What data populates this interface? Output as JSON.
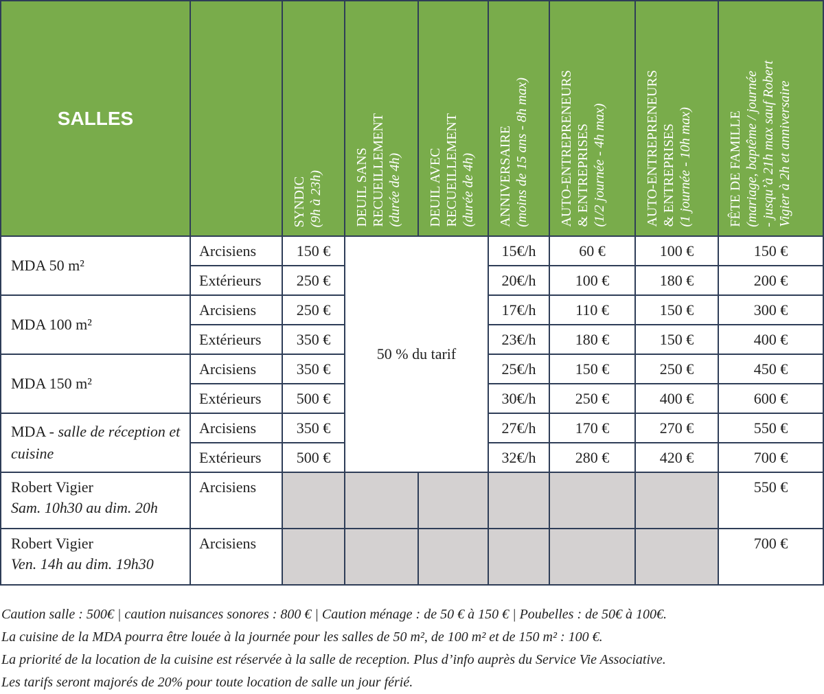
{
  "table": {
    "header": {
      "salles": "SALLES",
      "columns": [
        {
          "title": [
            "SYNDIC"
          ],
          "note": [
            "(9h à 23h)"
          ]
        },
        {
          "title": [
            "DEUIL SANS",
            "RECUEILLEMENT"
          ],
          "note": [
            "(durée de 4h)"
          ]
        },
        {
          "title": [
            "DEUIL AVEC",
            "RECUEILLEMENT"
          ],
          "note": [
            "(durée de 4h)"
          ]
        },
        {
          "title": [
            "ANNIVERSAIRE"
          ],
          "note": [
            "(moins de 15 ans - 8h max)"
          ]
        },
        {
          "title": [
            "AUTO-ENTREPRENEURS",
            "& ENTREPRISES"
          ],
          "note": [
            "(1/2 journée - 4h max)"
          ]
        },
        {
          "title": [
            "AUTO-ENTREPRENEURS",
            "& ENTREPRISES"
          ],
          "note": [
            "(1 journée - 10h max)"
          ]
        },
        {
          "title": [
            "FÊTE DE FAMILLE"
          ],
          "note": [
            "(mariage, baptême / journée",
            "- jusqu’à 21h max sauf Robert",
            "Vigier à 2h et anniversaire"
          ]
        }
      ]
    },
    "deuil": "50 % du tarif",
    "groups": [
      {
        "salle": "MDA 50 m²",
        "rows": [
          [
            "Arcisiens",
            "150 €",
            "15€/h",
            "60 €",
            "100 €",
            "150 €"
          ],
          [
            "Extérieurs",
            "250 €",
            "20€/h",
            "100 €",
            "180 €",
            "200 €"
          ]
        ]
      },
      {
        "salle": "MDA 100 m²",
        "rows": [
          [
            "Arcisiens",
            "250 €",
            "17€/h",
            "110 €",
            "150 €",
            "300 €"
          ],
          [
            "Extérieurs",
            "350 €",
            "23€/h",
            "180 €",
            "150 €",
            "400 €"
          ]
        ]
      },
      {
        "salle": "MDA 150 m²",
        "rows": [
          [
            "Arcisiens",
            "350 €",
            "25€/h",
            "150 €",
            "250 €",
            "450 €"
          ],
          [
            "Extérieurs",
            "500 €",
            "30€/h",
            "250 €",
            "400 €",
            "600 €"
          ]
        ]
      },
      {
        "salle": "MDA - ",
        "salle_italic": "salle de réception et cuisine",
        "rows": [
          [
            "Arcisiens",
            "350 €",
            "27€/h",
            "170 €",
            "270 €",
            "550 €"
          ],
          [
            "Extérieurs",
            "500 €",
            "32€/h",
            "280 €",
            "420 €",
            "700 €"
          ]
        ]
      },
      {
        "salle": "Robert Vigier",
        "salle_italic": "Sam. 10h30 au dim. 20h",
        "rows": [
          [
            "Arcisiens",
            "550 €"
          ]
        ]
      },
      {
        "salle": "Robert Vigier",
        "salle_italic": "Ven. 14h au dim. 19h30",
        "rows": [
          [
            "Arcisiens",
            "700 €"
          ]
        ]
      }
    ]
  },
  "notes": [
    "Caution salle : 500€ | caution nuisances sonores : 800 € | Caution ménage : de 50 € à 150 € | Poubelles : de 50€ à 100€.",
    "La cuisine de la MDA pourra être louée à la journée pour les salles de 50 m², de 100 m² et de 150 m² : 100 €.",
    "La priorité de la location de la cuisine est réservée à la salle de reception. Plus d’info auprès du Service Vie Associative.",
    "Les tarifs seront majorés de 20% pour toute location de salle un jour férié."
  ]
}
